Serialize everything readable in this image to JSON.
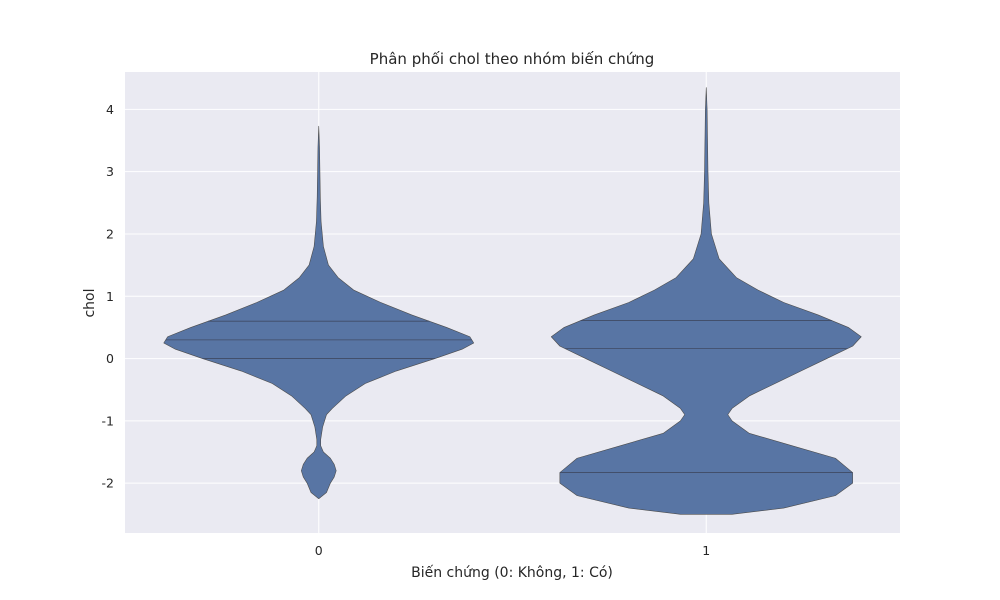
{
  "chart_data": {
    "type": "violin",
    "title": "Phân phối chol theo nhóm biến chứng",
    "xlabel": "Biến chứng (0: Không, 1: Có)",
    "ylabel": "chol",
    "categories": [
      "0",
      "1"
    ],
    "ylim": [
      -2.8,
      4.6
    ],
    "yticks": [
      -2,
      -1,
      0,
      1,
      2,
      3,
      4
    ],
    "grid": true,
    "background": "#eaeaf2",
    "violin_color": "#5875a4",
    "edge_color": "#4c4c4c",
    "violins": [
      {
        "category": "0",
        "min": -2.25,
        "max": 3.73,
        "quartiles": [
          0.0,
          0.3,
          0.6
        ],
        "profile": [
          [
            -2.25,
            0.0
          ],
          [
            -2.15,
            0.02
          ],
          [
            -2.0,
            0.03
          ],
          [
            -1.9,
            0.04
          ],
          [
            -1.8,
            0.045
          ],
          [
            -1.7,
            0.04
          ],
          [
            -1.6,
            0.03
          ],
          [
            -1.5,
            0.012
          ],
          [
            -1.4,
            0.005
          ],
          [
            -1.3,
            0.005
          ],
          [
            -1.1,
            0.01
          ],
          [
            -0.9,
            0.02
          ],
          [
            -0.8,
            0.035
          ],
          [
            -0.6,
            0.07
          ],
          [
            -0.4,
            0.12
          ],
          [
            -0.2,
            0.2
          ],
          [
            0.0,
            0.3
          ],
          [
            0.15,
            0.37
          ],
          [
            0.25,
            0.4
          ],
          [
            0.35,
            0.39
          ],
          [
            0.5,
            0.33
          ],
          [
            0.7,
            0.24
          ],
          [
            0.9,
            0.16
          ],
          [
            1.1,
            0.09
          ],
          [
            1.3,
            0.05
          ],
          [
            1.5,
            0.025
          ],
          [
            1.8,
            0.012
          ],
          [
            2.2,
            0.006
          ],
          [
            2.6,
            0.004
          ],
          [
            3.0,
            0.003
          ],
          [
            3.4,
            0.002
          ],
          [
            3.73,
            0.0
          ]
        ]
      },
      {
        "category": "1",
        "min": -2.5,
        "max": 4.35,
        "quartiles": [
          -1.83,
          0.16,
          0.61
        ],
        "profile": [
          [
            -2.5,
            0.03
          ],
          [
            -2.4,
            0.09
          ],
          [
            -2.2,
            0.15
          ],
          [
            -2.0,
            0.17
          ],
          [
            -1.83,
            0.17
          ],
          [
            -1.6,
            0.15
          ],
          [
            -1.4,
            0.1
          ],
          [
            -1.2,
            0.05
          ],
          [
            -1.0,
            0.03
          ],
          [
            -0.9,
            0.025
          ],
          [
            -0.8,
            0.03
          ],
          [
            -0.6,
            0.05
          ],
          [
            -0.4,
            0.08
          ],
          [
            -0.2,
            0.11
          ],
          [
            0.0,
            0.14
          ],
          [
            0.2,
            0.17
          ],
          [
            0.35,
            0.18
          ],
          [
            0.5,
            0.165
          ],
          [
            0.7,
            0.13
          ],
          [
            0.9,
            0.09
          ],
          [
            1.1,
            0.06
          ],
          [
            1.3,
            0.035
          ],
          [
            1.6,
            0.015
          ],
          [
            2.0,
            0.006
          ],
          [
            2.5,
            0.003
          ],
          [
            3.0,
            0.002
          ],
          [
            3.5,
            0.0015
          ],
          [
            4.0,
            0.001
          ],
          [
            4.35,
            0.0
          ]
        ]
      }
    ]
  }
}
